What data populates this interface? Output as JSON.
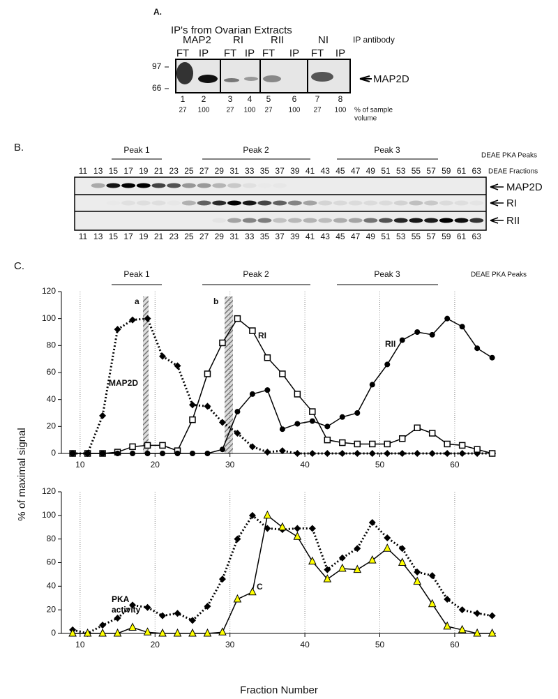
{
  "panel_a": {
    "label": "A.",
    "title": "IP's from Ovarian Extracts",
    "antibodies": [
      "MAP2",
      "RI",
      "RII",
      "NI"
    ],
    "antibody_caption": "IP antibody",
    "lanes": [
      "FT",
      "IP",
      "FT",
      "IP",
      "FT",
      "IP",
      "FT",
      "IP"
    ],
    "markers": [
      "97",
      "66"
    ],
    "band": "MAP2D",
    "lane_numbers": [
      1,
      2,
      3,
      4,
      5,
      6,
      7,
      8
    ],
    "sample_volume": [
      27,
      100,
      27,
      100,
      27,
      100,
      27,
      100
    ],
    "sample_volume_caption": [
      "% of sample",
      "volume"
    ]
  },
  "panel_b": {
    "label": "B.",
    "peaks": [
      "Peak 1",
      "Peak 2",
      "Peak 3"
    ],
    "peaks_caption": "DEAE PKA Peaks",
    "fractions": [
      11,
      13,
      15,
      17,
      19,
      21,
      23,
      25,
      27,
      29,
      31,
      33,
      35,
      37,
      39,
      41,
      43,
      45,
      47,
      49,
      51,
      53,
      55,
      57,
      59,
      61,
      63
    ],
    "fractions_caption": "DEAE Fractions",
    "rows": [
      "MAP2D",
      "RI",
      "RII"
    ]
  },
  "panel_c": {
    "label": "C.",
    "peaks": [
      "Peak 1",
      "Peak 2",
      "Peak 3"
    ],
    "peaks_caption": "DEAE PKA Peaks",
    "y_label": "% of maximal signal"
  },
  "chart_data": [
    {
      "type": "line",
      "annotations": [
        "a",
        "b"
      ],
      "x": [
        9,
        11,
        13,
        15,
        17,
        19,
        21,
        23,
        25,
        27,
        29,
        31,
        33,
        35,
        37,
        39,
        41,
        43,
        45,
        47,
        49,
        51,
        53,
        55,
        57,
        59,
        61,
        63,
        65
      ],
      "series": [
        {
          "name": "MAP2D",
          "color": "#000000",
          "marker": "diamond",
          "dash": "dotted",
          "values": [
            0,
            0,
            28,
            92,
            99,
            100,
            72,
            65,
            36,
            35,
            23,
            15,
            5,
            1,
            2,
            0,
            0,
            0,
            0,
            0,
            0,
            0,
            0,
            0,
            0,
            0,
            0,
            0,
            0
          ]
        },
        {
          "name": "RI",
          "color": "#000000",
          "marker": "square",
          "dash": "solid",
          "values": [
            0,
            0,
            0,
            1,
            5,
            6,
            6,
            2,
            25,
            59,
            82,
            100,
            91,
            71,
            59,
            44,
            31,
            10,
            8,
            7,
            7,
            7,
            11,
            19,
            15,
            7,
            6,
            3,
            0
          ]
        },
        {
          "name": "RII",
          "color": "#000000",
          "marker": "circle",
          "dash": "solid",
          "values": [
            0,
            0,
            0,
            0,
            0,
            0,
            0,
            0,
            0,
            0,
            3,
            31,
            44,
            47,
            18,
            22,
            24,
            20,
            27,
            30,
            51,
            66,
            84,
            90,
            88,
            100,
            94,
            78,
            71
          ]
        }
      ],
      "xlim": [
        7.5,
        65.5
      ],
      "ylim": [
        0,
        120
      ],
      "xticks": [
        10,
        20,
        30,
        40,
        50,
        60
      ],
      "yticks": [
        0,
        20,
        40,
        60,
        80,
        100,
        120
      ],
      "grid": true
    },
    {
      "type": "line",
      "x_label": "Fraction Number",
      "x": [
        9,
        11,
        13,
        15,
        17,
        19,
        21,
        23,
        25,
        27,
        29,
        31,
        33,
        35,
        37,
        39,
        41,
        43,
        45,
        47,
        49,
        51,
        53,
        55,
        57,
        59,
        61,
        63,
        65
      ],
      "series": [
        {
          "name": "PKA activity",
          "color": "#000000",
          "marker": "diamond",
          "dash": "dotted",
          "values": [
            3,
            0,
            7,
            13,
            24,
            22,
            15,
            17,
            11,
            23,
            46,
            80,
            100,
            89,
            88,
            89,
            89,
            54,
            64,
            72,
            94,
            81,
            72,
            52,
            49,
            29,
            20,
            17,
            15
          ]
        },
        {
          "name": "C",
          "color": "#ffff00",
          "marker": "triangle",
          "dash": "solid",
          "values": [
            0,
            0,
            0,
            0,
            5,
            1,
            0,
            0,
            0,
            0,
            1,
            29,
            35,
            100,
            90,
            82,
            61,
            46,
            55,
            54,
            62,
            72,
            60,
            44,
            25,
            6,
            3,
            0,
            0
          ]
        }
      ],
      "xlim": [
        7.5,
        65.5
      ],
      "ylim": [
        0,
        120
      ],
      "xticks": [
        10,
        20,
        30,
        40,
        50,
        60
      ],
      "yticks": [
        0,
        20,
        40,
        60,
        80,
        100,
        120
      ],
      "grid": true
    }
  ]
}
